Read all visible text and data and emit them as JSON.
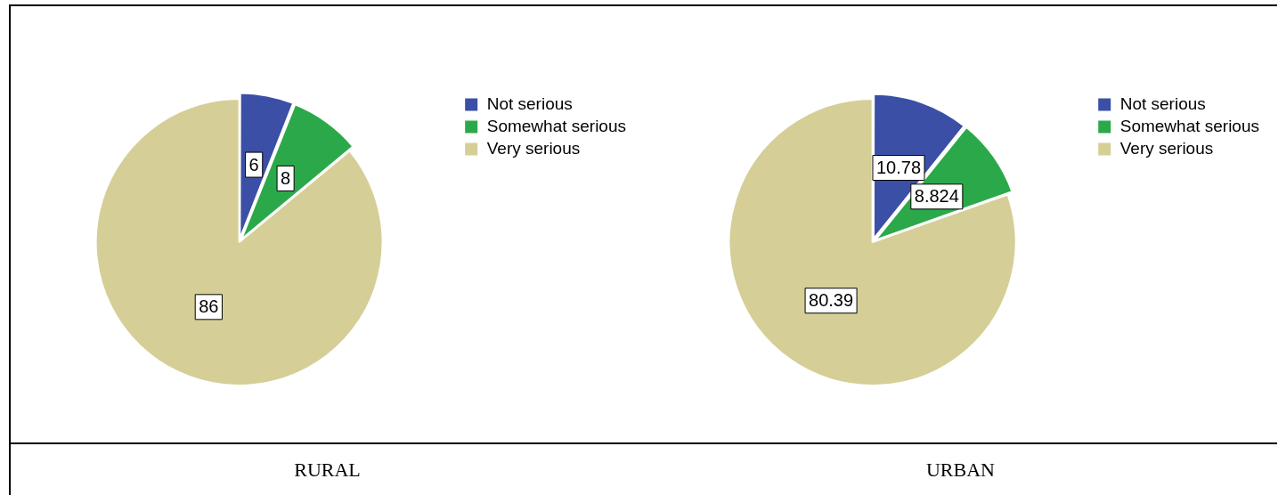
{
  "chart_data": [
    {
      "type": "pie",
      "title": "RURAL",
      "categories": [
        "Not serious",
        "Somewhat serious",
        "Very serious"
      ],
      "values": [
        6,
        8,
        86
      ],
      "colors": [
        "#3b4fa6",
        "#2ba94a",
        "#d5cf97"
      ],
      "data_labels": true,
      "legend": "top right"
    },
    {
      "type": "pie",
      "title": "URBAN",
      "categories": [
        "Not serious",
        "Somewhat serious",
        "Very serious"
      ],
      "values": [
        10.78,
        8.824,
        80.39
      ],
      "colors": [
        "#3b4fa6",
        "#2ba94a",
        "#d5cf97"
      ],
      "data_labels": true,
      "legend": "top right"
    }
  ]
}
